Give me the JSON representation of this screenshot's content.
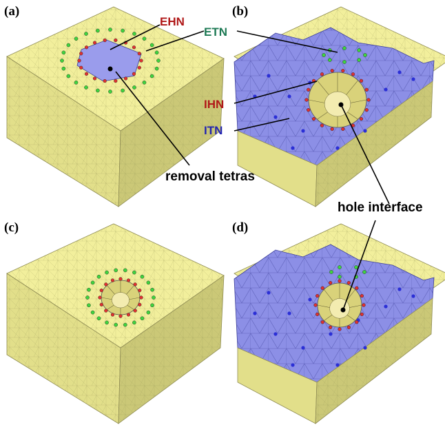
{
  "panels": [
    {
      "id": "a",
      "tag": "(a)"
    },
    {
      "id": "b",
      "tag": "(b)"
    },
    {
      "id": "c",
      "tag": "(c)"
    },
    {
      "id": "d",
      "tag": "(d)"
    }
  ],
  "labels": {
    "ehn": "EHN",
    "etn": "ETN",
    "ihn": "IHN",
    "itn": "ITN",
    "removal": "removal tetras",
    "hole": "hole interface"
  },
  "colors": {
    "cube_top": "#f2ef9c",
    "cube_left": "#e2df8a",
    "cube_right": "#cbc877",
    "interior_mesh": "#8c8fe6",
    "hole_fill": "#9a9cec",
    "node_green": "#3fd43f",
    "node_red": "#e03030",
    "node_blue": "#2b2fd6",
    "label_red": "#b01818",
    "label_green": "#1e7a55",
    "label_blue": "#2224b0"
  },
  "node_icons": [
    "green-node-icon",
    "red-node-icon",
    "blue-node-icon"
  ]
}
